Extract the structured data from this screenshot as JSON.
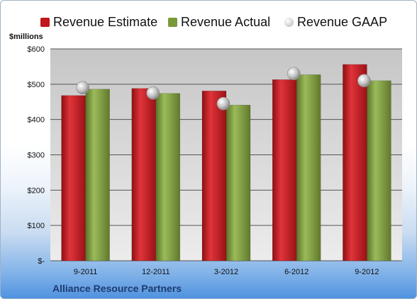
{
  "chart_data": {
    "type": "bar",
    "categories": [
      "9-2011",
      "12-2011",
      "3-2012",
      "6-2012",
      "9-2012"
    ],
    "series": [
      {
        "name": "Revenue Estimate",
        "values": [
          468,
          488,
          481,
          513,
          556
        ],
        "color": "#c0161c"
      },
      {
        "name": "Revenue Actual",
        "values": [
          486,
          474,
          441,
          527,
          510
        ],
        "color": "#7a9a3a"
      }
    ],
    "markers": {
      "name": "Revenue GAAP",
      "values": [
        490,
        475,
        445,
        530,
        510
      ],
      "color": "#c8c8c8"
    },
    "ylabel": "$millions",
    "ylim": [
      0,
      600
    ],
    "yticks": [
      0,
      100,
      200,
      300,
      400,
      500,
      600
    ],
    "ytick_labels": [
      "$-",
      "$100",
      "$200",
      "$300",
      "$400",
      "$500",
      "$600"
    ],
    "grid": true,
    "legend": "top",
    "footer": "Alliance Resource Partners"
  }
}
